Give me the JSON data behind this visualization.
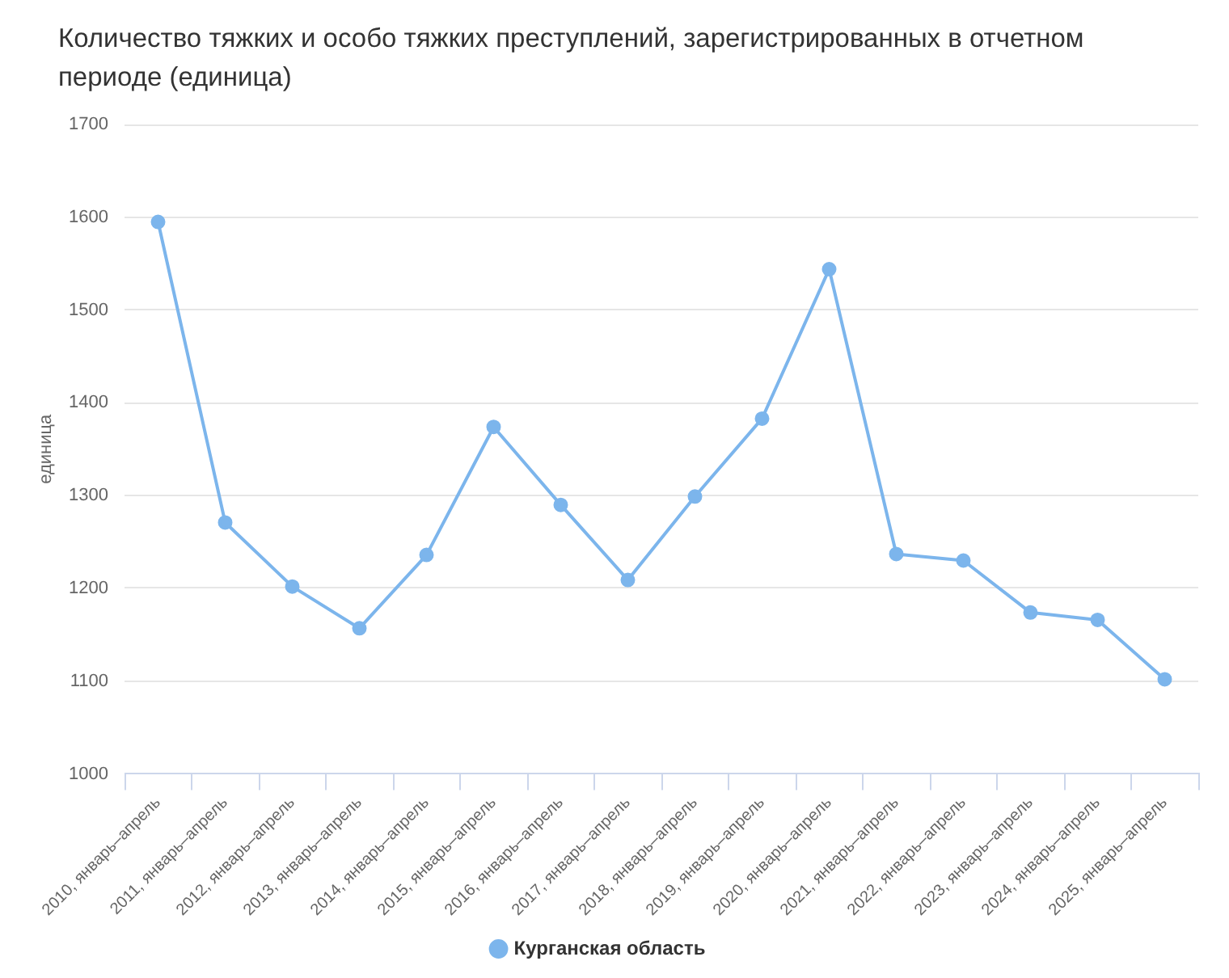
{
  "chart_data": {
    "type": "line",
    "title": "Количество тяжких и особо тяжких преступлений, зарегистрированных в отчетном периоде (единица)",
    "ylabel": "единица",
    "categories": [
      "2010, январь–апрель",
      "2011, январь–апрель",
      "2012, январь–апрель",
      "2013, январь–апрель",
      "2014, январь–апрель",
      "2015, январь–апрель",
      "2016, январь–апрель",
      "2017, январь–апрель",
      "2018, январь–апрель",
      "2019, январь–апрель",
      "2020, январь–апрель",
      "2021, январь–апрель",
      "2022, январь–апрель",
      "2023, январь–апрель",
      "2024, январь–апрель",
      "2025, январь–апрель"
    ],
    "series": [
      {
        "name": "Курганская область",
        "color": "#7cb5ec",
        "values": [
          1595,
          1271,
          1202,
          1157,
          1236,
          1374,
          1290,
          1209,
          1299,
          1383,
          1544,
          1237,
          1230,
          1174,
          1166,
          1102
        ]
      }
    ],
    "ylim": [
      1000,
      1700
    ],
    "yticks": [
      1000,
      1100,
      1200,
      1300,
      1400,
      1500,
      1600,
      1700
    ],
    "grid": "y",
    "legend": "bottom",
    "marker": "circle",
    "line_style": "solid"
  }
}
